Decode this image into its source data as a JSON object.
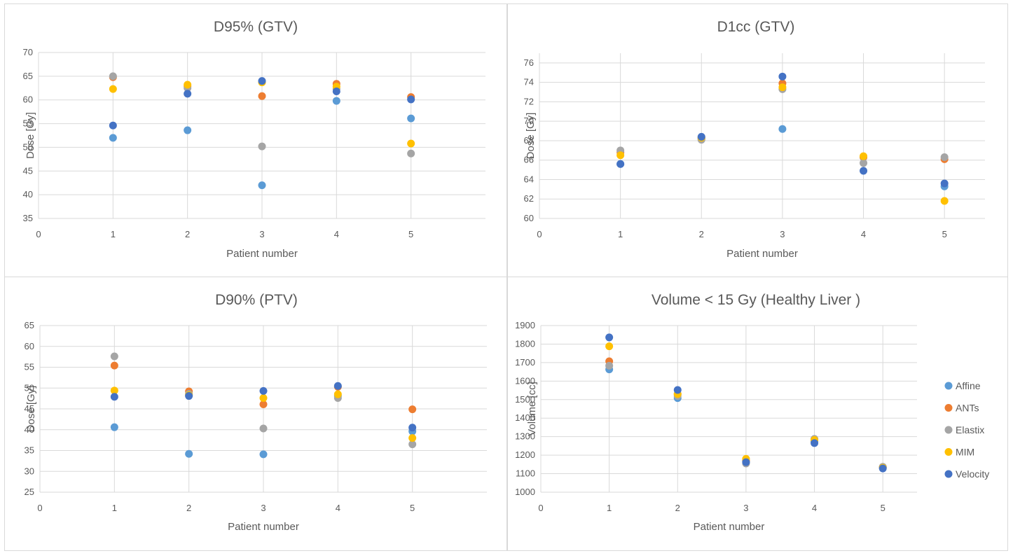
{
  "colors": {
    "Affine": "#5b9bd5",
    "ANTs": "#ed7d31",
    "Elastix": "#a5a5a5",
    "MIM": "#ffc000",
    "Velocity": "#4472c4",
    "grid": "#d9d9d9",
    "text": "#595959"
  },
  "legend": {
    "placement": "right",
    "items": [
      {
        "label": "Affine",
        "color": "#5b9bd5"
      },
      {
        "label": "ANTs",
        "color": "#ed7d31"
      },
      {
        "label": "Elastix",
        "color": "#a5a5a5"
      },
      {
        "label": "MIM",
        "color": "#ffc000"
      },
      {
        "label": "Velocity",
        "color": "#4472c4"
      }
    ]
  },
  "chart_data": [
    {
      "type": "scatter",
      "title": "D95% (GTV)",
      "xlabel": "Patient number",
      "ylabel": "Dose [Gy]",
      "xlim": [
        0,
        6
      ],
      "ylim": [
        35,
        70
      ],
      "x_ticks": [
        0,
        1,
        2,
        3,
        4,
        5
      ],
      "y_ticks": [
        35,
        40,
        45,
        50,
        55,
        60,
        65,
        70
      ],
      "grid": true,
      "x": [
        1,
        2,
        3,
        4,
        5
      ],
      "series": [
        {
          "name": "Affine",
          "values": [
            52.0,
            53.6,
            42.0,
            59.8,
            56.1
          ]
        },
        {
          "name": "ANTs",
          "values": [
            64.8,
            62.9,
            60.8,
            63.4,
            60.6
          ]
        },
        {
          "name": "Elastix",
          "values": [
            65.0,
            62.5,
            50.2,
            62.3,
            48.7
          ]
        },
        {
          "name": "MIM",
          "values": [
            62.3,
            63.2,
            63.7,
            62.8,
            50.8
          ]
        },
        {
          "name": "Velocity",
          "values": [
            54.6,
            61.3,
            64.0,
            61.8,
            60.1
          ]
        }
      ]
    },
    {
      "type": "scatter",
      "title": "D1cc (GTV)",
      "xlabel": "Patient number",
      "ylabel": "Dose [Gy]",
      "xlim": [
        0,
        5.5
      ],
      "ylim": [
        60,
        77
      ],
      "x_ticks": [
        0,
        1,
        2,
        3,
        4,
        5
      ],
      "y_ticks": [
        60,
        62,
        64,
        66,
        68,
        70,
        72,
        74,
        76
      ],
      "grid": true,
      "x": [
        1,
        2,
        3,
        4,
        5
      ],
      "series": [
        {
          "name": "Affine",
          "values": [
            65.6,
            68.2,
            69.2,
            66.3,
            63.3
          ]
        },
        {
          "name": "ANTs",
          "values": [
            66.8,
            68.3,
            73.9,
            66.3,
            66.1
          ]
        },
        {
          "name": "Elastix",
          "values": [
            67.0,
            68.1,
            73.3,
            65.7,
            66.3
          ]
        },
        {
          "name": "MIM",
          "values": [
            66.5,
            68.3,
            73.5,
            66.4,
            61.8
          ]
        },
        {
          "name": "Velocity",
          "values": [
            65.6,
            68.4,
            74.6,
            64.9,
            63.6
          ]
        }
      ]
    },
    {
      "type": "scatter",
      "title": "D90% (PTV)",
      "xlabel": "Patient number",
      "ylabel": "Dose [Gy]",
      "xlim": [
        0,
        6
      ],
      "ylim": [
        25,
        65
      ],
      "x_ticks": [
        0,
        1,
        2,
        3,
        4,
        5
      ],
      "y_ticks": [
        25,
        30,
        35,
        40,
        45,
        50,
        55,
        60,
        65
      ],
      "grid": true,
      "x": [
        1,
        2,
        3,
        4,
        5
      ],
      "series": [
        {
          "name": "Affine",
          "values": [
            40.6,
            34.2,
            34.1,
            48.1,
            39.6
          ]
        },
        {
          "name": "ANTs",
          "values": [
            55.4,
            49.2,
            46.1,
            50.3,
            44.9
          ]
        },
        {
          "name": "Elastix",
          "values": [
            57.6,
            48.6,
            40.3,
            47.6,
            36.5
          ]
        },
        {
          "name": "MIM",
          "values": [
            49.4,
            48.3,
            47.6,
            48.5,
            38.0
          ]
        },
        {
          "name": "Velocity",
          "values": [
            47.9,
            48.1,
            49.3,
            50.5,
            40.5
          ]
        }
      ]
    },
    {
      "type": "scatter",
      "title": "Volume < 15 Gy (Healthy Liver )",
      "xlabel": "Patient number",
      "ylabel": "Volume [cc]",
      "xlim": [
        0,
        5.5
      ],
      "ylim": [
        1000,
        1900
      ],
      "x_ticks": [
        0,
        1,
        2,
        3,
        4,
        5
      ],
      "y_ticks": [
        1000,
        1100,
        1200,
        1300,
        1400,
        1500,
        1600,
        1700,
        1800,
        1900
      ],
      "grid": true,
      "x": [
        1,
        2,
        3,
        4,
        5
      ],
      "series": [
        {
          "name": "Affine",
          "values": [
            1663,
            1508,
            1165,
            1275,
            1135
          ]
        },
        {
          "name": "ANTs",
          "values": [
            1707,
            1530,
            1170,
            1285,
            1135
          ]
        },
        {
          "name": "Elastix",
          "values": [
            1683,
            1520,
            1155,
            1288,
            1137
          ]
        },
        {
          "name": "MIM",
          "values": [
            1788,
            1530,
            1180,
            1282,
            1132
          ]
        },
        {
          "name": "Velocity",
          "values": [
            1836,
            1552,
            1162,
            1265,
            1128
          ]
        }
      ]
    }
  ]
}
